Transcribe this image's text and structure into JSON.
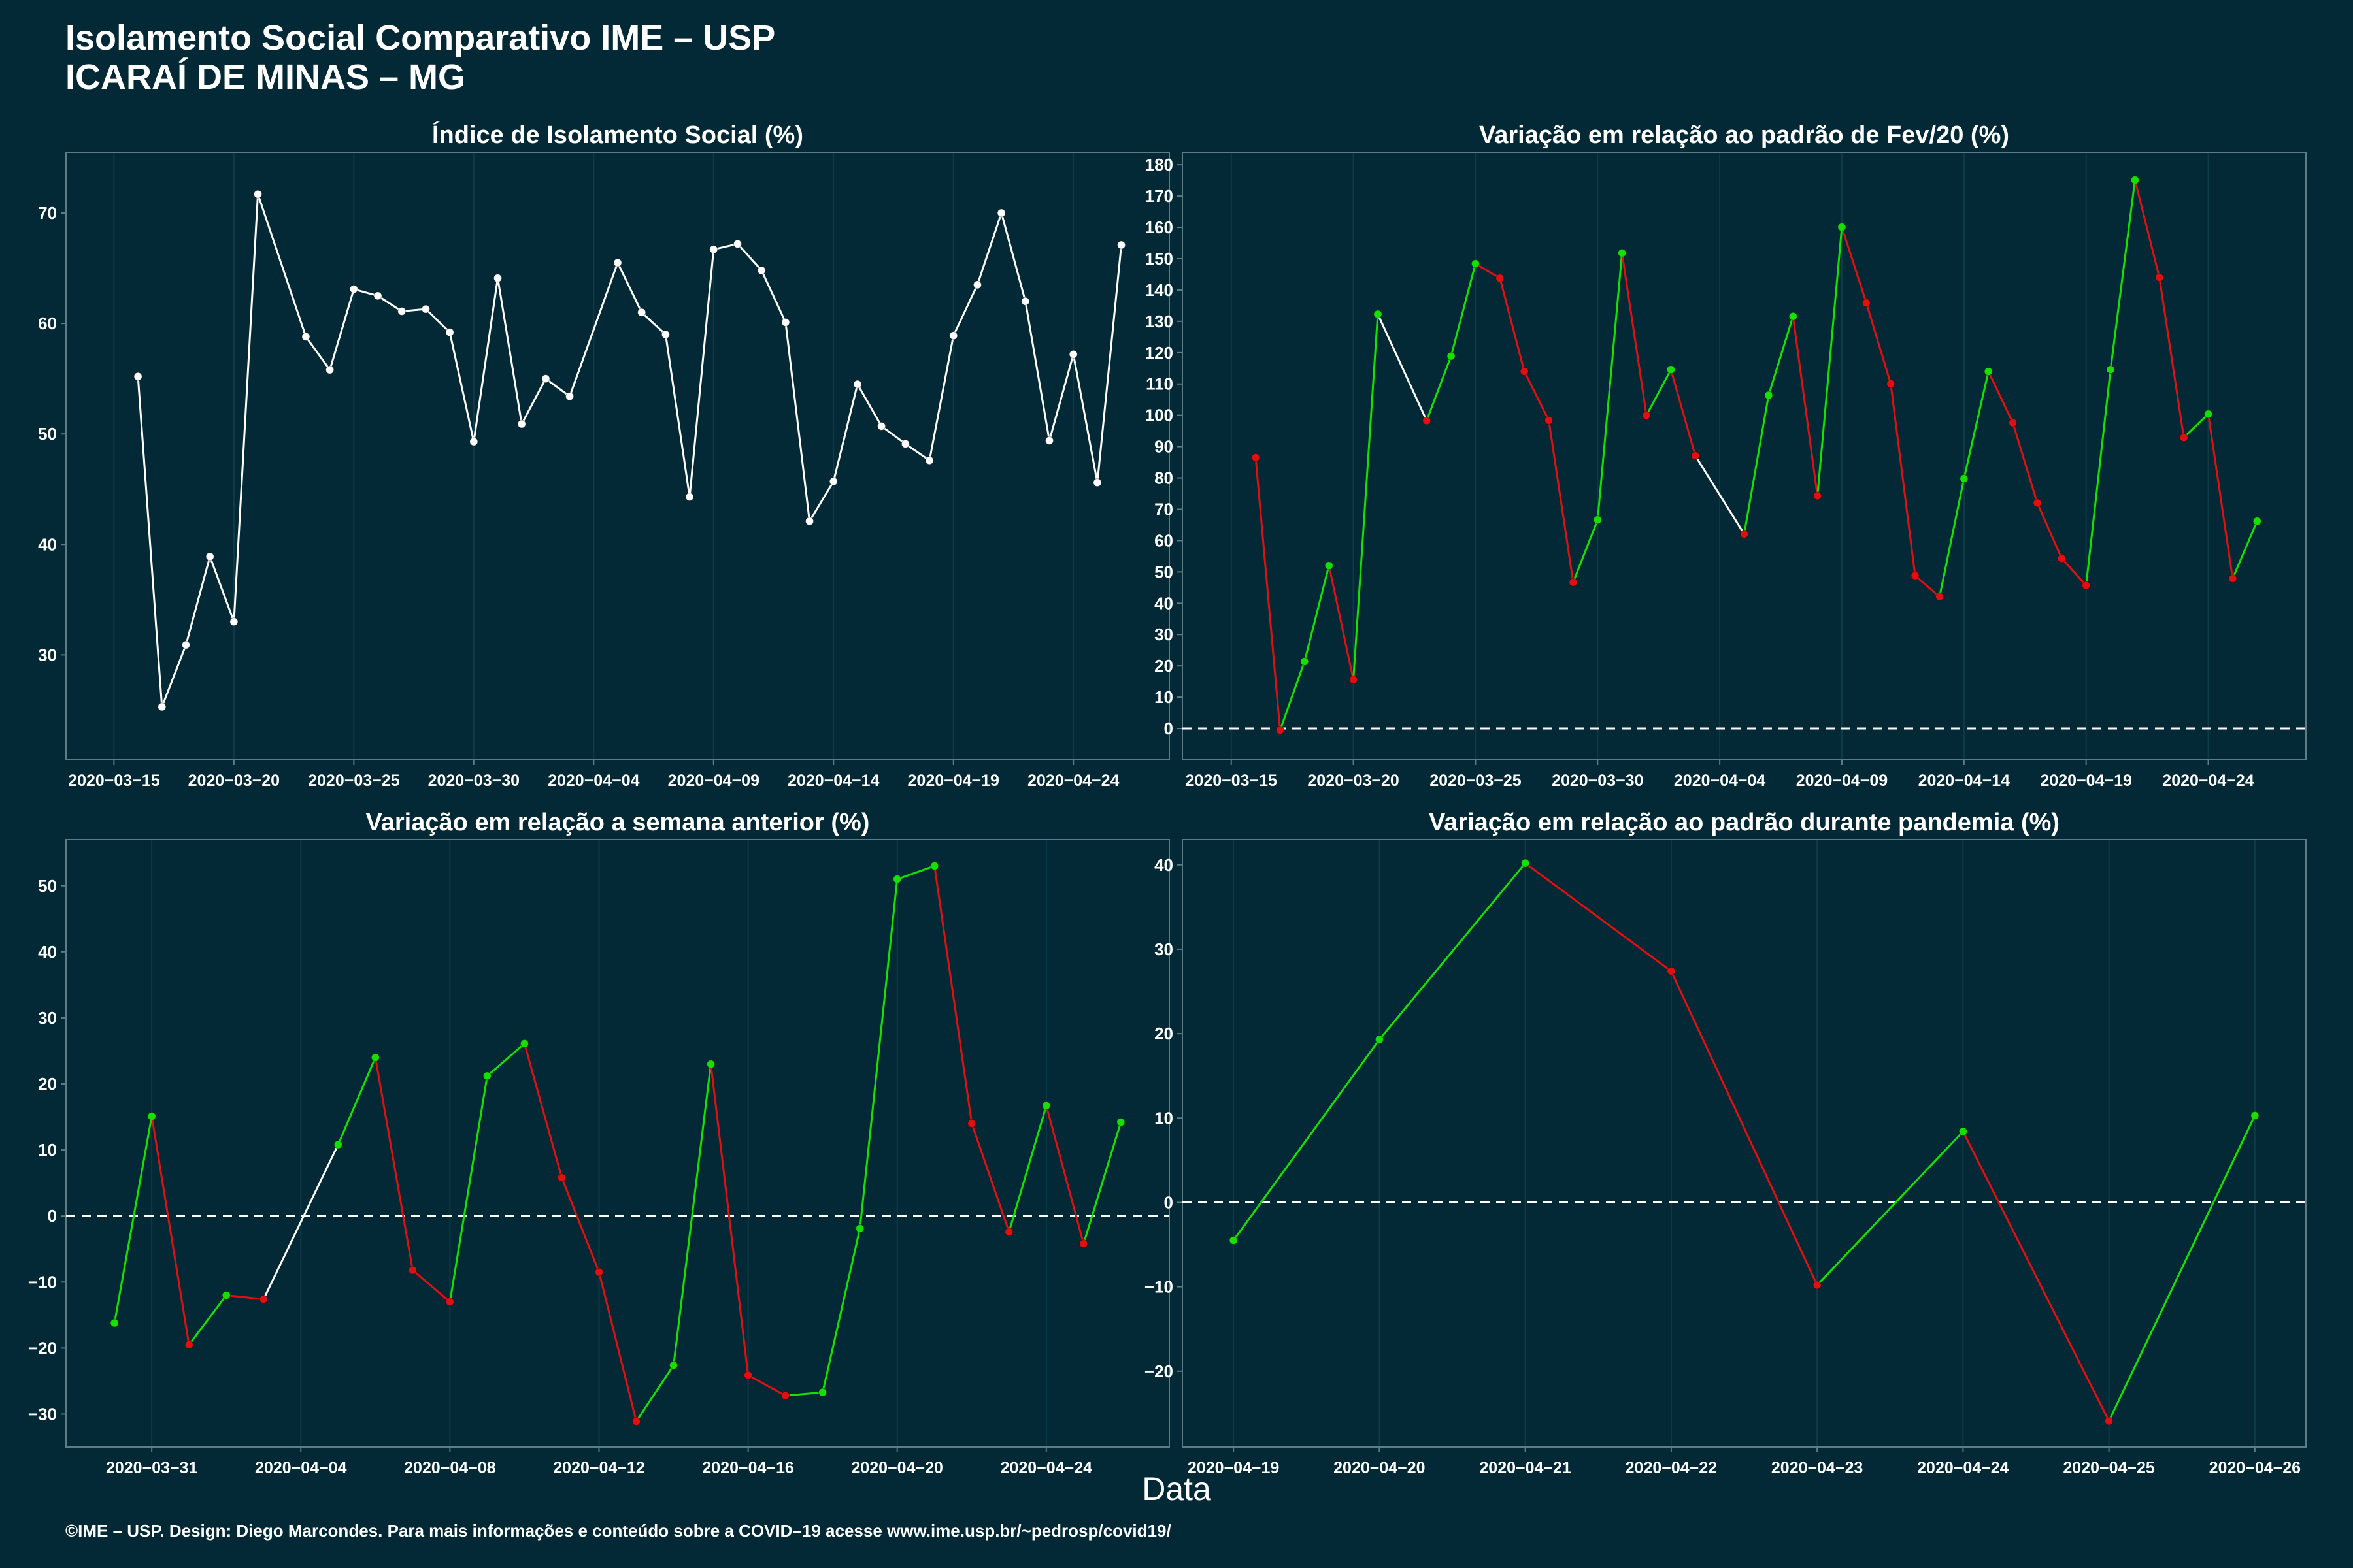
{
  "header": {
    "title_line1": "Isolamento Social Comparativo IME – USP",
    "title_line2": "ICARAÍ DE MINAS – MG"
  },
  "common_xlabel": "Data",
  "footer": "©IME – USP. Design: Diego Marcondes. Para mais informações e conteúdo sobre a COVID–19 acesse www.ime.usp.br/~pedrosp/covid19/",
  "colors": {
    "background": "#022935",
    "panel_border": "#5e7c86",
    "grid": "#0f3b47",
    "white_line": "#ffffff",
    "green": "#16e000",
    "red": "#e01010",
    "dashed_zero": "#ffffff"
  },
  "chart_data": [
    {
      "id": "isolamento",
      "type": "line",
      "title": "Índice de Isolamento Social (%)",
      "xlabel": "",
      "ylabel": "",
      "ylim": [
        20.5,
        75.5
      ],
      "yticks": [
        30,
        40,
        50,
        60,
        70
      ],
      "xlim": [
        "2020-03-13",
        "2020-04-28"
      ],
      "xticks": [
        "2020-03-15",
        "2020-03-20",
        "2020-03-25",
        "2020-03-30",
        "2020-04-04",
        "2020-04-09",
        "2020-04-14",
        "2020-04-19",
        "2020-04-24"
      ],
      "color_mode": "white",
      "zero_line": false,
      "x": [
        "2020-03-16",
        "2020-03-17",
        "2020-03-18",
        "2020-03-19",
        "2020-03-20",
        "2020-03-21",
        "2020-03-23",
        "2020-03-24",
        "2020-03-25",
        "2020-03-26",
        "2020-03-27",
        "2020-03-28",
        "2020-03-29",
        "2020-03-30",
        "2020-03-31",
        "2020-04-01",
        "2020-04-02",
        "2020-04-03",
        "2020-04-05",
        "2020-04-06",
        "2020-04-07",
        "2020-04-08",
        "2020-04-09",
        "2020-04-10",
        "2020-04-11",
        "2020-04-12",
        "2020-04-13",
        "2020-04-14",
        "2020-04-15",
        "2020-04-16",
        "2020-04-17",
        "2020-04-18",
        "2020-04-19",
        "2020-04-20",
        "2020-04-21",
        "2020-04-22",
        "2020-04-23",
        "2020-04-24",
        "2020-04-25",
        "2020-04-26"
      ],
      "values": [
        55.2,
        25.3,
        30.9,
        38.9,
        33.0,
        71.7,
        58.8,
        55.8,
        63.1,
        62.5,
        61.1,
        61.3,
        59.2,
        49.3,
        64.1,
        50.9,
        55.0,
        53.4,
        65.5,
        61.0,
        59.0,
        44.3,
        66.7,
        67.2,
        64.8,
        60.1,
        42.1,
        45.7,
        54.5,
        50.7,
        49.1,
        47.6,
        58.9,
        63.5,
        70.0,
        62.0,
        49.4,
        57.2,
        45.6,
        67.1
      ]
    },
    {
      "id": "fev",
      "type": "line",
      "title": "Variação em relação ao padrão de Fev/20 (%)",
      "xlabel": "",
      "ylabel": "",
      "ylim": [
        -10,
        184
      ],
      "yticks": [
        0,
        10,
        20,
        30,
        40,
        50,
        60,
        70,
        80,
        90,
        100,
        110,
        120,
        130,
        140,
        150,
        160,
        170,
        180
      ],
      "xlim": [
        "2020-03-13",
        "2020-04-28"
      ],
      "xticks": [
        "2020-03-15",
        "2020-03-20",
        "2020-03-25",
        "2020-03-30",
        "2020-04-04",
        "2020-04-09",
        "2020-04-14",
        "2020-04-19",
        "2020-04-24"
      ],
      "color_mode": "trend",
      "zero_line": true,
      "x": [
        "2020-03-16",
        "2020-03-17",
        "2020-03-18",
        "2020-03-19",
        "2020-03-20",
        "2020-03-21",
        "2020-03-23",
        "2020-03-24",
        "2020-03-25",
        "2020-03-26",
        "2020-03-27",
        "2020-03-28",
        "2020-03-29",
        "2020-03-30",
        "2020-03-31",
        "2020-04-01",
        "2020-04-02",
        "2020-04-03",
        "2020-04-05",
        "2020-04-06",
        "2020-04-07",
        "2020-04-08",
        "2020-04-09",
        "2020-04-10",
        "2020-04-11",
        "2020-04-12",
        "2020-04-13",
        "2020-04-14",
        "2020-04-15",
        "2020-04-16",
        "2020-04-17",
        "2020-04-18",
        "2020-04-19",
        "2020-04-20",
        "2020-04-21",
        "2020-04-22",
        "2020-04-23",
        "2020-04-24",
        "2020-04-25",
        "2020-04-26"
      ],
      "values": [
        86.5,
        -0.5,
        21.4,
        52.0,
        15.6,
        132.3,
        98.3,
        118.9,
        148.4,
        143.8,
        114.0,
        98.4,
        46.7,
        66.6,
        151.8,
        100.0,
        114.6,
        87.1,
        62.1,
        106.4,
        131.6,
        74.3,
        160.1,
        135.9,
        110.1,
        48.8,
        42.1,
        79.8,
        114.0,
        97.6,
        72.0,
        54.3,
        45.7,
        114.6,
        175.1,
        144.0,
        92.9,
        100.4,
        47.9,
        66.2
      ]
    },
    {
      "id": "semana",
      "type": "line",
      "title": "Variação em relação a semana anterior (%)",
      "xlabel": "",
      "ylabel": "",
      "ylim": [
        -35,
        57
      ],
      "yticks": [
        -30,
        -20,
        -10,
        0,
        10,
        20,
        30,
        40,
        50
      ],
      "xlim": [
        "2020-03-28.7",
        "2020-04-27.3"
      ],
      "xticks": [
        "2020-03-31",
        "2020-04-04",
        "2020-04-08",
        "2020-04-12",
        "2020-04-16",
        "2020-04-20",
        "2020-04-24"
      ],
      "color_mode": "trend",
      "zero_line": true,
      "x": [
        "2020-03-30",
        "2020-03-31",
        "2020-04-01",
        "2020-04-02",
        "2020-04-03",
        "2020-04-05",
        "2020-04-06",
        "2020-04-07",
        "2020-04-08",
        "2020-04-09",
        "2020-04-10",
        "2020-04-11",
        "2020-04-12",
        "2020-04-13",
        "2020-04-14",
        "2020-04-15",
        "2020-04-16",
        "2020-04-17",
        "2020-04-18",
        "2020-04-19",
        "2020-04-20",
        "2020-04-21",
        "2020-04-22",
        "2020-04-23",
        "2020-04-24",
        "2020-04-25",
        "2020-04-26"
      ],
      "values": [
        -16.2,
        15.1,
        -19.5,
        -12.0,
        -12.6,
        10.8,
        24.0,
        -8.2,
        -13.0,
        21.2,
        26.1,
        5.8,
        -8.5,
        -31.1,
        -22.6,
        23.0,
        -24.1,
        -27.2,
        -26.7,
        -1.9,
        51.0,
        53.0,
        14.0,
        -2.4,
        16.7,
        -4.2,
        14.2
      ]
    },
    {
      "id": "pandemia",
      "type": "line",
      "title": "Variação em relação ao padrão durante pandemia (%)",
      "xlabel": "",
      "ylabel": "",
      "ylim": [
        -29,
        43
      ],
      "yticks": [
        -20,
        -10,
        0,
        10,
        20,
        30,
        40
      ],
      "xlim": [
        "2020-04-18.65",
        "2020-04-26.35"
      ],
      "xticks": [
        "2020-04-19",
        "2020-04-20",
        "2020-04-21",
        "2020-04-22",
        "2020-04-23",
        "2020-04-24",
        "2020-04-25",
        "2020-04-26"
      ],
      "color_mode": "trend",
      "zero_line": true,
      "x": [
        "2020-04-19",
        "2020-04-20",
        "2020-04-21",
        "2020-04-22",
        "2020-04-23",
        "2020-04-24",
        "2020-04-25",
        "2020-04-26"
      ],
      "values": [
        -4.5,
        19.3,
        40.2,
        27.4,
        -9.8,
        8.4,
        -25.9,
        10.3
      ]
    }
  ]
}
